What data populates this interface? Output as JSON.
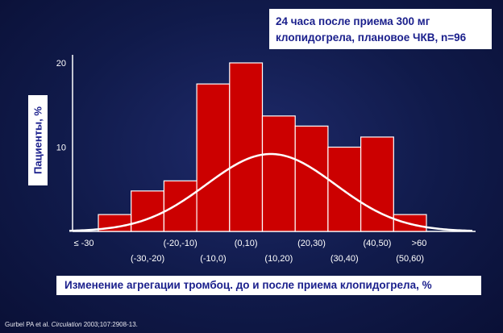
{
  "annotation": {
    "line1": "24 часа после приема 300 мг",
    "line2": "клопидогрела, плановое ЧКВ, n=96"
  },
  "citation": {
    "authors": "Gurbel PA et al. ",
    "journal": "Circulation",
    "ref": " 2003;107:2908-13."
  },
  "colors": {
    "background": "#101a4a",
    "bar": "#cc0000",
    "bar_border": "#ffffff",
    "curve": "#ffffff",
    "label_box": "#ffffff",
    "label_text": "#1a1f8c"
  },
  "chart_data": {
    "type": "bar",
    "title": "",
    "xlabel": "Изменение агрегации тромбоц. до и после приема клопидогрела, %",
    "ylabel": "Пациенты, %",
    "categories": [
      "≤ -30",
      "(-30,-20)",
      "(-20,-10)",
      "(-10,0)",
      "(0,10)",
      "(10,20)",
      "(20,30)",
      "(30,40)",
      "(40,50)",
      "(50,60)",
      ">60"
    ],
    "values": [
      2,
      4.8,
      6,
      17.5,
      20,
      13.7,
      12.5,
      10,
      11.2,
      2,
      0
    ],
    "ylim": [
      0,
      20
    ],
    "yticks": [
      10,
      20
    ],
    "overlay": "normal-curve",
    "grid": false
  }
}
